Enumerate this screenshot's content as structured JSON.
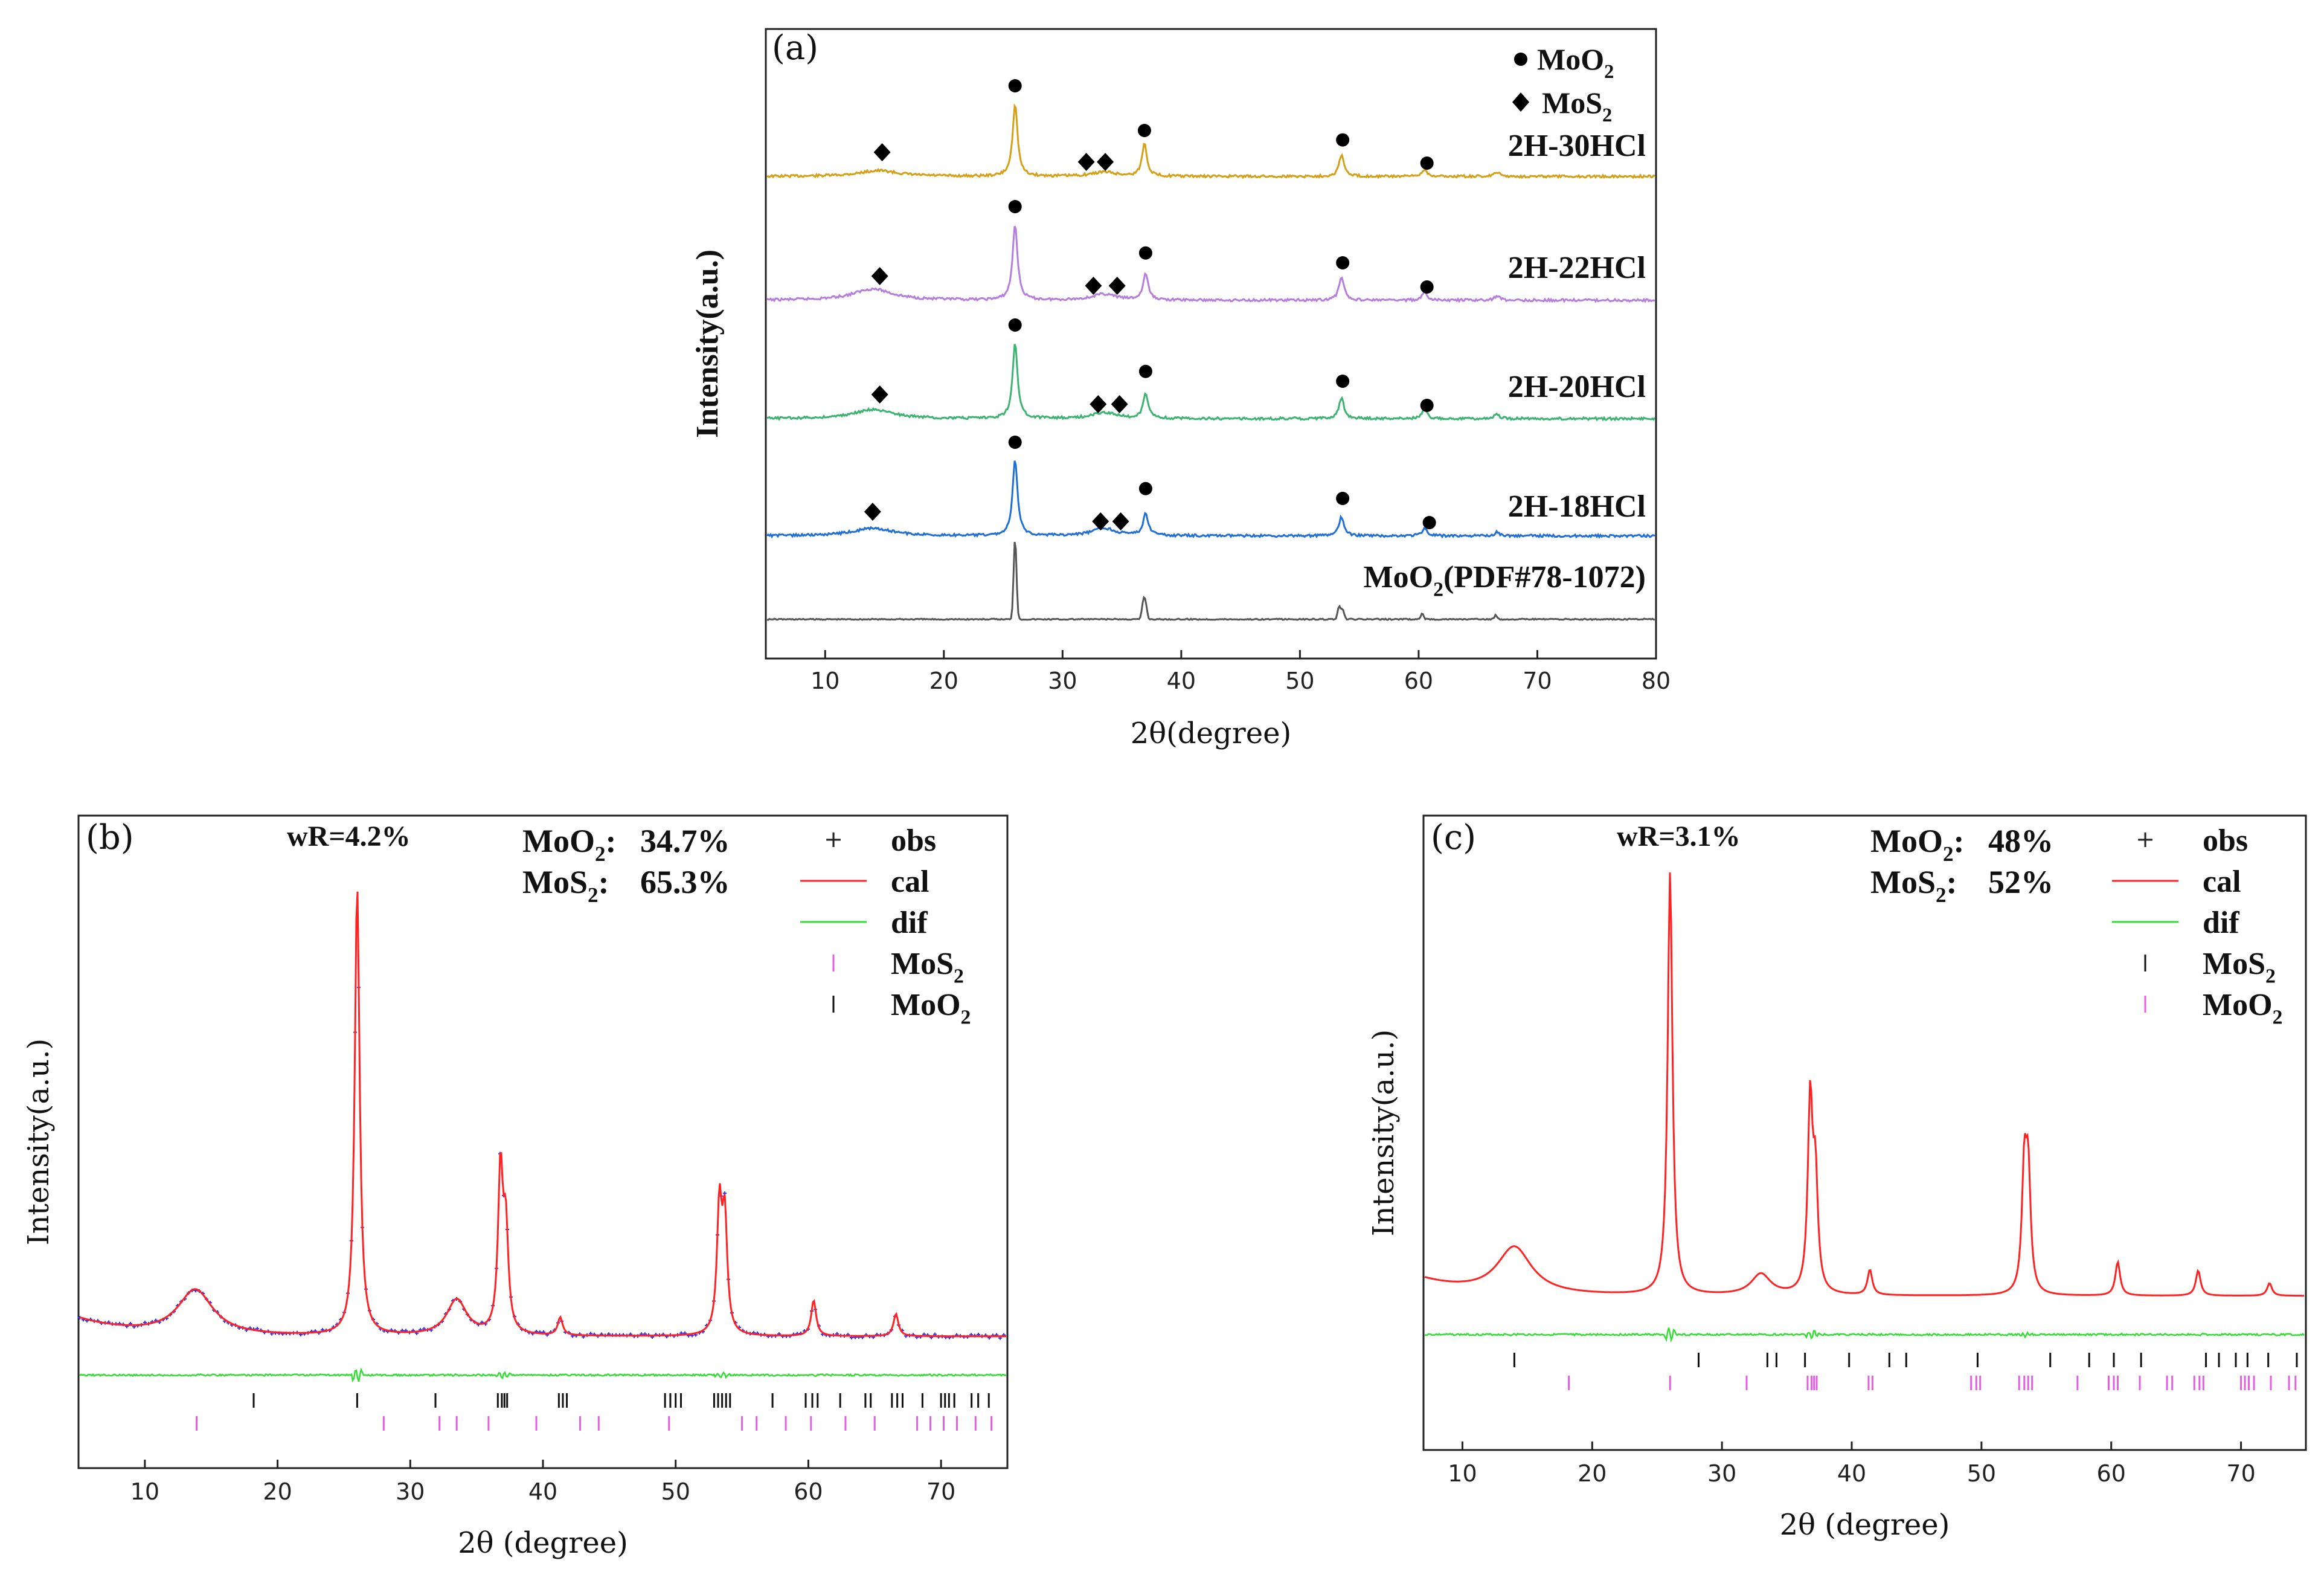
{
  "chart_data": [
    {
      "panel": "(a)",
      "type": "line",
      "xlabel": "2θ(degree)",
      "ylabel": "Intensity(a.u.)",
      "xlim": [
        5,
        80
      ],
      "xticks": [
        10,
        20,
        30,
        40,
        50,
        60,
        70,
        80
      ],
      "legend": [
        {
          "marker": "circle",
          "label": "MoO",
          "sub": "2"
        },
        {
          "marker": "diamond",
          "label": "MoS",
          "sub": "2"
        }
      ],
      "series": [
        {
          "name": "2H-30HCl",
          "color": "#d4a017",
          "peaks": [
            [
              14.5,
              0.08
            ],
            [
              26.0,
              1.0
            ],
            [
              33.5,
              0.06
            ],
            [
              36.9,
              0.45
            ],
            [
              53.5,
              0.3
            ],
            [
              60.5,
              0.1
            ],
            [
              66.6,
              0.06
            ]
          ],
          "mos2_markers": [
            14.8,
            32.0,
            33.6
          ],
          "moo2_markers": [
            26.0,
            36.9,
            53.6,
            60.7
          ]
        },
        {
          "name": "2H-22HCl",
          "color": "#b57edc",
          "peaks": [
            [
              14.0,
              0.15
            ],
            [
              26.0,
              1.0
            ],
            [
              33.5,
              0.08
            ],
            [
              37.0,
              0.35
            ],
            [
              53.5,
              0.32
            ],
            [
              60.5,
              0.1
            ],
            [
              66.6,
              0.06
            ]
          ],
          "mos2_markers": [
            14.6,
            32.6,
            34.6
          ],
          "moo2_markers": [
            26.0,
            37.0,
            53.6,
            60.7
          ]
        },
        {
          "name": "2H-20HCl",
          "color": "#3cb371",
          "peaks": [
            [
              14.0,
              0.12
            ],
            [
              26.0,
              1.0
            ],
            [
              33.5,
              0.08
            ],
            [
              37.0,
              0.33
            ],
            [
              53.5,
              0.28
            ],
            [
              60.5,
              0.12
            ],
            [
              66.6,
              0.06
            ]
          ],
          "mos2_markers": [
            14.6,
            33.0,
            34.8
          ],
          "moo2_markers": [
            26.0,
            37.0,
            53.6,
            60.7
          ]
        },
        {
          "name": "2H-18HCl",
          "color": "#1f6fd6",
          "peaks": [
            [
              14.0,
              0.1
            ],
            [
              26.0,
              1.0
            ],
            [
              33.5,
              0.1
            ],
            [
              37.0,
              0.3
            ],
            [
              53.5,
              0.25
            ],
            [
              60.5,
              0.1
            ],
            [
              66.6,
              0.05
            ]
          ],
          "mos2_markers": [
            14.0,
            33.2,
            34.9
          ],
          "moo2_markers": [
            26.0,
            37.0,
            53.6,
            60.9
          ]
        },
        {
          "name": "MoO",
          "name_sub": "2",
          "name_suffix": "(PDF#78-1072)",
          "color": "#555555",
          "peaks": [
            [
              26.0,
              1.0
            ],
            [
              36.8,
              0.2
            ],
            [
              37.0,
              0.18
            ],
            [
              53.3,
              0.15
            ],
            [
              53.6,
              0.12
            ],
            [
              60.3,
              0.07
            ],
            [
              66.5,
              0.05
            ]
          ],
          "mos2_markers": [],
          "moo2_markers": []
        }
      ]
    },
    {
      "panel": "(b)",
      "type": "line",
      "xlabel": "2θ (degree)",
      "ylabel": "Intensity(a.u.)",
      "xlim": [
        5,
        75
      ],
      "xticks": [
        10,
        20,
        30,
        40,
        50,
        60,
        70
      ],
      "stats": {
        "wr": "wR=4.2%",
        "line1_label": "MoO",
        "line1_sub": "2",
        "line1_value": "34.7%",
        "line2_label": "MoS",
        "line2_sub": "2",
        "line2_value": "65.3%",
        "sep": ":"
      },
      "legend": [
        {
          "key": "obs",
          "label": "obs",
          "color": "#3333ff"
        },
        {
          "key": "cal",
          "label": "cal",
          "color": "#ff2222"
        },
        {
          "key": "dif",
          "label": "dif",
          "color": "#33dd33"
        },
        {
          "key": "phase1",
          "label": "MoS",
          "sub": "2",
          "color": "#e060e0"
        },
        {
          "key": "phase2",
          "label": "MoO",
          "sub": "2",
          "color": "#111111"
        }
      ],
      "peaks": [
        [
          13.8,
          0.1
        ],
        [
          26.0,
          1.0
        ],
        [
          33.5,
          0.08
        ],
        [
          36.8,
          0.36
        ],
        [
          37.2,
          0.22
        ],
        [
          41.3,
          0.04
        ],
        [
          53.3,
          0.28
        ],
        [
          53.7,
          0.25
        ],
        [
          60.4,
          0.08
        ],
        [
          66.6,
          0.05
        ]
      ],
      "black_ticks": [
        18.2,
        26.0,
        31.9,
        36.6,
        36.9,
        37.1,
        37.3,
        41.2,
        41.5,
        41.8,
        49.2,
        49.6,
        50.0,
        50.4,
        52.9,
        53.2,
        53.5,
        53.8,
        54.1,
        57.3,
        59.8,
        60.3,
        60.7,
        62.4,
        64.3,
        64.7,
        66.3,
        66.7,
        67.1,
        68.6,
        70.0,
        70.3,
        70.6,
        71.0,
        72.3,
        72.8,
        73.6
      ],
      "pink_ticks": [
        13.9,
        28.0,
        32.2,
        33.5,
        35.9,
        39.5,
        42.8,
        44.2,
        49.5,
        55.0,
        56.1,
        58.3,
        60.2,
        62.8,
        65.0,
        68.2,
        69.2,
        70.2,
        71.2,
        72.6,
        73.8
      ]
    },
    {
      "panel": "(c)",
      "type": "line",
      "xlabel": "2θ (degree)",
      "ylabel": "Intensity(a.u.)",
      "xlim": [
        7,
        75
      ],
      "xticks": [
        10,
        20,
        30,
        40,
        50,
        60,
        70
      ],
      "stats": {
        "wr": "wR=3.1%",
        "line1_label": "MoO",
        "line1_sub": "2",
        "line1_value": "48%",
        "line2_label": "MoS",
        "line2_sub": "2",
        "line2_value": "52%",
        "sep": ":"
      },
      "legend": [
        {
          "key": "obs",
          "label": "obs",
          "color": "#3333ff"
        },
        {
          "key": "cal",
          "label": "cal",
          "color": "#ff2222"
        },
        {
          "key": "dif",
          "label": "dif",
          "color": "#33dd33"
        },
        {
          "key": "phase1",
          "label": "MoS",
          "sub": "2",
          "color": "#111111"
        },
        {
          "key": "phase2",
          "label": "MoO",
          "sub": "2",
          "color": "#e060e0"
        }
      ],
      "peaks": [
        [
          14.0,
          0.11
        ],
        [
          26.0,
          1.0
        ],
        [
          33.0,
          0.05
        ],
        [
          36.8,
          0.45
        ],
        [
          37.2,
          0.26
        ],
        [
          41.4,
          0.06
        ],
        [
          53.3,
          0.28
        ],
        [
          53.6,
          0.27
        ],
        [
          60.5,
          0.08
        ],
        [
          66.7,
          0.06
        ],
        [
          72.2,
          0.03
        ]
      ],
      "black_ticks": [
        14.0,
        28.2,
        33.5,
        34.2,
        36.4,
        39.8,
        42.9,
        44.2,
        49.7,
        55.3,
        58.3,
        60.2,
        62.3,
        67.3,
        68.3,
        69.6,
        70.5,
        72.1,
        74.3
      ],
      "pink_ticks": [
        18.2,
        26.0,
        31.9,
        36.6,
        36.9,
        37.1,
        37.3,
        41.3,
        41.6,
        49.2,
        49.6,
        49.9,
        52.9,
        53.3,
        53.6,
        53.9,
        57.4,
        59.8,
        60.2,
        60.5,
        62.2,
        64.3,
        64.7,
        66.4,
        66.8,
        67.1,
        70.0,
        70.3,
        70.6,
        71.0,
        72.3,
        73.7,
        74.2
      ]
    }
  ]
}
